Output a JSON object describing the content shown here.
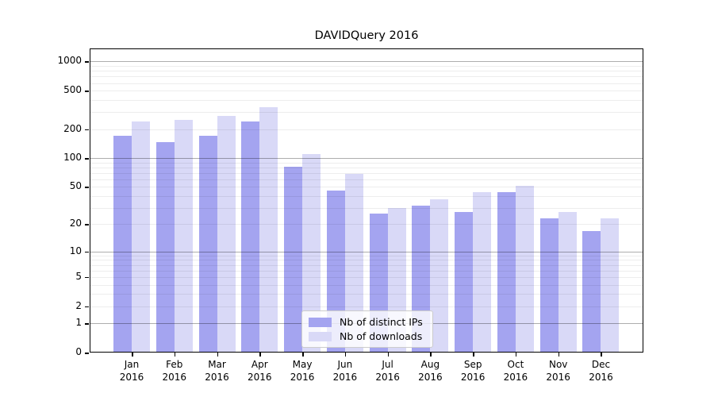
{
  "title": "DAVIDQuery 2016",
  "colors": {
    "distinct_ips": "#a4a4f0",
    "downloads": "#d9d9f7",
    "grid_major": "rgba(0,0,0,0.32)",
    "grid_minor": "rgba(0,0,0,0.07)",
    "spine": "#000000"
  },
  "chart_data": {
    "type": "bar",
    "title": "DAVIDQuery 2016",
    "yscale": "log1p",
    "categories": [
      "Jan",
      "Feb",
      "Mar",
      "Apr",
      "May",
      "Jun",
      "Jul",
      "Aug",
      "Sep",
      "Oct",
      "Nov",
      "Dec"
    ],
    "category_year": "2016",
    "series": [
      {
        "name": "Nb of distinct IPs",
        "color": "#a4a4f0",
        "values": [
          170,
          148,
          170,
          240,
          82,
          46,
          26,
          32,
          27,
          44,
          23,
          17
        ]
      },
      {
        "name": "Nb of downloads",
        "color": "#d9d9f7",
        "values": [
          240,
          250,
          276,
          340,
          110,
          69,
          30,
          37,
          44,
          51,
          27,
          23
        ]
      }
    ],
    "yticks": [
      0,
      1,
      2,
      5,
      10,
      20,
      50,
      100,
      200,
      500,
      1000
    ],
    "grid_major_values": [
      1,
      10,
      100,
      1000
    ],
    "ylim": [
      0,
      1365
    ],
    "xlabel": "",
    "ylabel": "",
    "grid": "horizontal, drawn over bars",
    "legend_position": "lower center"
  }
}
